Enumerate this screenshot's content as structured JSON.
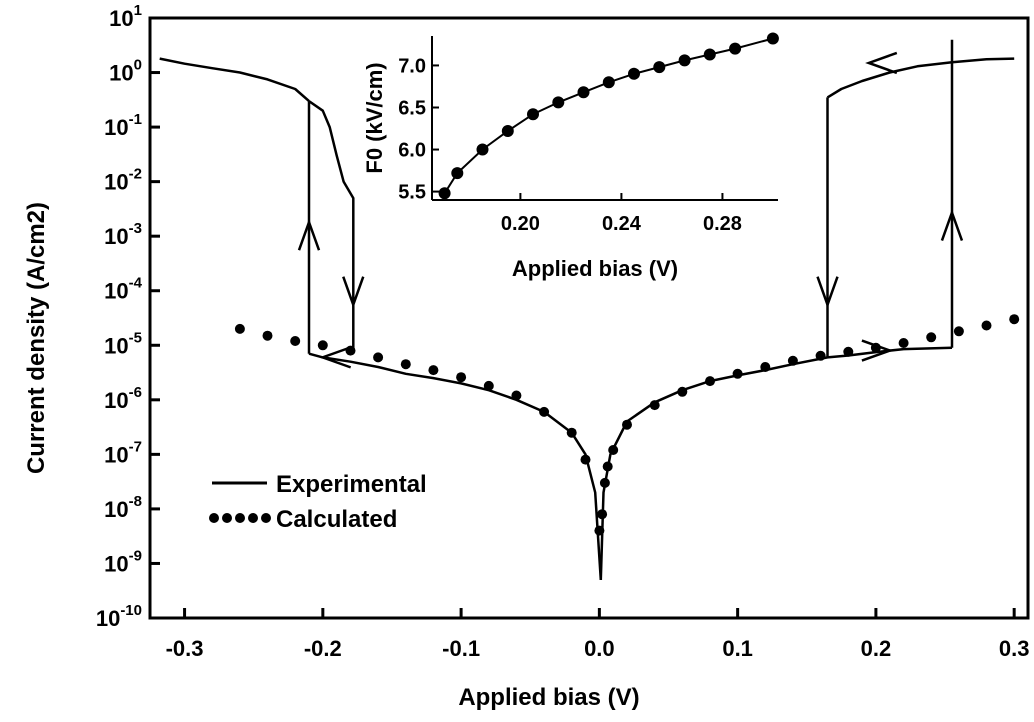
{
  "chart_data": [
    {
      "type": "line",
      "xlabel": "Applied bias (V)",
      "ylabel": "Current density (A/cm2)",
      "xlim": [
        -0.325,
        0.31
      ],
      "ylim": [
        -10,
        1
      ],
      "yscale": "log",
      "xticks": [
        -0.3,
        -0.2,
        -0.1,
        0.0,
        0.1,
        0.2,
        0.3
      ],
      "xtick_labels": [
        "-0.3",
        "-0.2",
        "-0.1",
        "0.0",
        "0.1",
        "0.2",
        "0.3"
      ],
      "yticks": [
        1,
        0,
        -1,
        -2,
        -3,
        -4,
        -5,
        -6,
        -7,
        -8,
        -9,
        -10
      ],
      "ytick_base": "10",
      "ytick_exponents": [
        "1",
        "0",
        "-1",
        "-2",
        "-3",
        "-4",
        "-5",
        "-6",
        "-7",
        "-8",
        "-9",
        "-10"
      ],
      "legend": {
        "placement": "lower-left",
        "entries": [
          {
            "label": "Experimental",
            "style": "solid"
          },
          {
            "label": "Calculated",
            "style": "dotted"
          }
        ]
      },
      "series": [
        {
          "name": "Experimental",
          "style": "solid",
          "segments": [
            [
              [
                -0.318,
                1.8
              ],
              [
                -0.3,
                1.45
              ],
              [
                -0.28,
                1.2
              ],
              [
                -0.26,
                1.0
              ],
              [
                -0.24,
                0.75
              ],
              [
                -0.22,
                0.5
              ],
              [
                -0.21,
                0.3
              ]
            ],
            [
              [
                -0.21,
                0.3
              ],
              [
                -0.21,
                7e-06
              ]
            ],
            [
              [
                -0.21,
                7e-06
              ],
              [
                -0.2,
                6e-06
              ],
              [
                -0.18,
                5e-06
              ],
              [
                -0.16,
                4e-06
              ],
              [
                -0.14,
                3e-06
              ],
              [
                -0.12,
                2.5e-06
              ],
              [
                -0.1,
                2e-06
              ],
              [
                -0.08,
                1.5e-06
              ],
              [
                -0.06,
                1e-06
              ],
              [
                -0.04,
                6e-07
              ],
              [
                -0.02,
                2.5e-07
              ],
              [
                -0.01,
                1e-07
              ],
              [
                -0.003,
                2e-08
              ],
              [
                0.001,
                5e-10
              ]
            ],
            [
              [
                0.001,
                5e-10
              ],
              [
                0.003,
                2e-08
              ],
              [
                0.008,
                1e-07
              ],
              [
                0.02,
                4e-07
              ],
              [
                0.04,
                9e-07
              ],
              [
                0.06,
                1.5e-06
              ],
              [
                0.08,
                2.2e-06
              ],
              [
                0.1,
                2.8e-06
              ],
              [
                0.12,
                3.5e-06
              ],
              [
                0.14,
                4.5e-06
              ],
              [
                0.165,
                6e-06
              ],
              [
                0.18,
                6.5e-06
              ],
              [
                0.2,
                7.5e-06
              ],
              [
                0.22,
                8.5e-06
              ],
              [
                0.255,
                9e-06
              ]
            ],
            [
              [
                0.255,
                9e-06
              ],
              [
                0.255,
                4.0
              ]
            ],
            [
              [
                0.165,
                6e-06
              ],
              [
                0.165,
                0.35
              ]
            ],
            [
              [
                0.165,
                0.35
              ],
              [
                0.175,
                0.5
              ],
              [
                0.19,
                0.7
              ],
              [
                0.21,
                1.0
              ],
              [
                0.23,
                1.3
              ],
              [
                0.255,
                1.55
              ],
              [
                0.28,
                1.75
              ],
              [
                0.3,
                1.8
              ]
            ],
            [
              [
                -0.178,
                7e-06
              ],
              [
                -0.178,
                0.005
              ],
              [
                -0.185,
                0.01
              ],
              [
                -0.19,
                0.03
              ],
              [
                -0.195,
                0.1
              ],
              [
                -0.2,
                0.2
              ],
              [
                -0.21,
                0.3
              ]
            ]
          ]
        },
        {
          "name": "Calculated",
          "style": "dotted",
          "x": [
            -0.26,
            -0.24,
            -0.22,
            -0.2,
            -0.18,
            -0.16,
            -0.14,
            -0.12,
            -0.1,
            -0.08,
            -0.06,
            -0.04,
            -0.02,
            -0.01,
            0.0,
            0.002,
            0.004,
            0.006,
            0.01,
            0.02,
            0.04,
            0.06,
            0.08,
            0.1,
            0.12,
            0.14,
            0.16,
            0.18,
            0.2,
            0.22,
            0.24,
            0.26,
            0.28,
            0.3
          ],
          "y": [
            2e-05,
            1.5e-05,
            1.2e-05,
            1e-05,
            8e-06,
            6e-06,
            4.5e-06,
            3.5e-06,
            2.6e-06,
            1.8e-06,
            1.2e-06,
            6e-07,
            2.5e-07,
            8e-08,
            4e-09,
            8e-09,
            3e-08,
            6e-08,
            1.2e-07,
            3.5e-07,
            8e-07,
            1.4e-06,
            2.2e-06,
            3e-06,
            4e-06,
            5.2e-06,
            6.4e-06,
            7.6e-06,
            9e-06,
            1.1e-05,
            1.4e-05,
            1.8e-05,
            2.3e-05,
            3e-05
          ]
        }
      ],
      "arrows": [
        {
          "x": -0.21,
          "y": 0.001,
          "direction": "up"
        },
        {
          "x": -0.178,
          "y": 0.0001,
          "direction": "down"
        },
        {
          "x": -0.19,
          "y": 6e-06,
          "direction": "left"
        },
        {
          "x": 0.165,
          "y": 0.0001,
          "direction": "down"
        },
        {
          "x": 0.255,
          "y": 0.0015,
          "direction": "up"
        },
        {
          "x": 0.2,
          "y": 8e-06,
          "direction": "right"
        },
        {
          "x": 0.205,
          "y": 1.5,
          "direction": "left"
        }
      ]
    },
    {
      "type": "line",
      "inset": true,
      "xlabel": "Applied bias (V)",
      "ylabel": "F0  (kV/cm)",
      "xlim": [
        0.165,
        0.302
      ],
      "ylim": [
        5.4,
        7.35
      ],
      "xticks": [
        0.2,
        0.24,
        0.28
      ],
      "xtick_labels": [
        "0.20",
        "0.24",
        "0.28"
      ],
      "yticks": [
        5.5,
        6.0,
        6.5,
        7.0
      ],
      "ytick_labels": [
        "5.5",
        "6.0",
        "6.5",
        "7.0"
      ],
      "series": [
        {
          "style": "line-with-markers",
          "x": [
            0.17,
            0.175,
            0.185,
            0.195,
            0.205,
            0.215,
            0.225,
            0.235,
            0.245,
            0.255,
            0.265,
            0.275,
            0.285,
            0.3
          ],
          "y": [
            5.48,
            5.72,
            6.0,
            6.22,
            6.42,
            6.56,
            6.68,
            6.8,
            6.9,
            6.98,
            7.06,
            7.13,
            7.2,
            7.32
          ]
        }
      ]
    }
  ]
}
